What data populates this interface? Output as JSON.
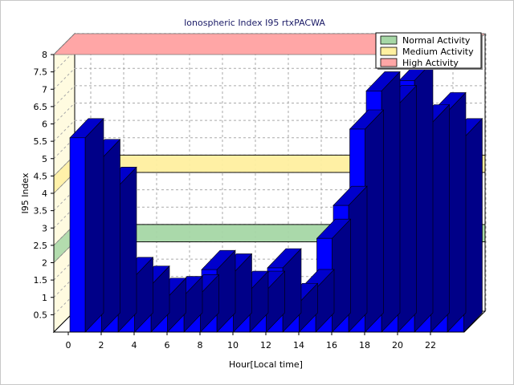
{
  "chart_data": {
    "type": "bar",
    "title": "Ionospheric Index I95 rtxPACWA",
    "xlabel": "Hour[Local time]",
    "ylabel": "I95 Index",
    "x": [
      0,
      1,
      2,
      3,
      4,
      5,
      6,
      7,
      8,
      9,
      10,
      11,
      12,
      13,
      14,
      15,
      16,
      17,
      18,
      19,
      20,
      21,
      22,
      23
    ],
    "values": [
      5.6,
      5.0,
      4.2,
      1.6,
      1.35,
      1.0,
      1.05,
      1.1,
      1.8,
      1.7,
      1.2,
      1.2,
      1.85,
      0.85,
      1.25,
      2.7,
      3.65,
      5.85,
      6.95,
      6.55,
      7.25,
      6.0,
      6.35,
      5.6
    ],
    "ylim": [
      0,
      8
    ],
    "y_ticks": [
      "0.5",
      "1",
      "1.5",
      "2",
      "2.5",
      "3",
      "3.5",
      "4",
      "4.5",
      "5",
      "5.5",
      "6",
      "6.5",
      "7",
      "7.5",
      "8"
    ],
    "x_ticks": [
      "0",
      "2",
      "4",
      "6",
      "8",
      "10",
      "12",
      "14",
      "16",
      "18",
      "20",
      "22"
    ],
    "grid": true,
    "legend_position": "top-right",
    "bands": [
      {
        "name": "Normal Activity",
        "from": 2,
        "to": 2.5,
        "color": "#a6d7a6"
      },
      {
        "name": "Medium Activity",
        "from": 4,
        "to": 4.5,
        "color": "#fff0a0"
      },
      {
        "name": "High Activity",
        "from": 8,
        "to": 8,
        "color": "#ffa6a6"
      }
    ],
    "bar_color": "#0000ff",
    "bar_side_color": "#000088",
    "bar_top_color": "#0000cc"
  }
}
